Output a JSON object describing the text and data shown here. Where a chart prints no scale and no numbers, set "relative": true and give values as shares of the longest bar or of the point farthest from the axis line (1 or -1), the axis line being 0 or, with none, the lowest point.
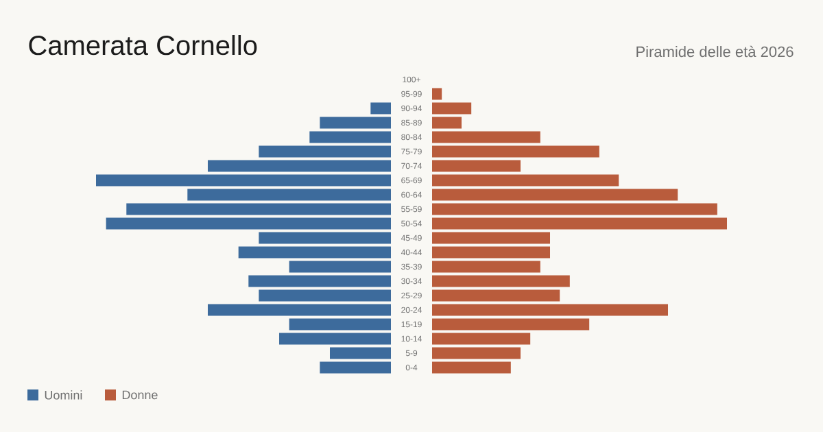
{
  "chart_data": [
    {
      "type": "bar",
      "orientation": "horizontal",
      "relative": true,
      "title": "Camerata Cornello",
      "legend": "bottom left",
      "categories": [
        "100+",
        null,
        "90-94",
        null,
        "80-84",
        null,
        "70-74",
        null,
        "60-64",
        null,
        "50-54",
        null,
        "40-44",
        null,
        "30-34",
        null,
        "20-24",
        null,
        "10-14",
        null,
        "0-4"
      ],
      "series": [
        {
          "name": "Uomini",
          "color": "#3d6b9c",
          "values": [
            0,
            0,
            -0.069,
            -0.241,
            -0.276,
            -0.448,
            -0.621,
            -1,
            -0.69,
            -0.897,
            -0.966,
            -0.448,
            -0.517,
            -0.345,
            -0.483,
            -0.448,
            -0.621,
            -0.345,
            -0.379,
            -0.207,
            -0.241
          ]
        }
      ]
    },
    {
      "type": "bar",
      "orientation": "horizontal",
      "relative": true,
      "legend": "bottom left",
      "subtitle": "Piramide delle età 2026",
      "categories": [
        null,
        "95-99",
        null,
        "85-89",
        null,
        "75-79",
        null,
        "65-69",
        null,
        "55-59",
        null,
        "45-49",
        null,
        "35-39",
        null,
        "25-29",
        null,
        "15-19",
        null,
        "5-9",
        null
      ],
      "series": [
        {
          "name": "Donne",
          "color": "#b95c3c",
          "values": [
            0,
            0.033,
            0.133,
            0.1,
            0.367,
            0.567,
            0.3,
            0.633,
            0.833,
            0.967,
            1,
            0.4,
            0.4,
            0.367,
            0.467,
            0.433,
            0.8,
            0.533,
            0.333,
            0.3,
            0.267
          ]
        }
      ]
    }
  ]
}
